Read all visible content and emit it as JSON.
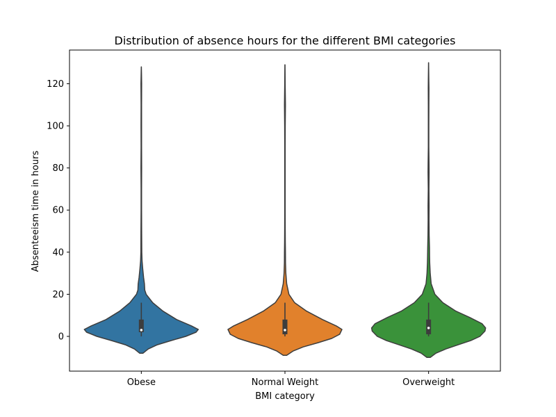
{
  "chart_data": {
    "type": "violin",
    "title": "Distribution of absence hours for the different BMI categories",
    "xlabel": "BMI category",
    "ylabel": "Absenteeism time in hours",
    "categories": [
      "Obese",
      "Normal Weight",
      "Overweight"
    ],
    "ylim": [
      -16.5,
      136
    ],
    "yticks": [
      0,
      20,
      40,
      60,
      80,
      100,
      120
    ],
    "grid": false,
    "colors": [
      "#3274a1",
      "#e1812c",
      "#3a923a"
    ],
    "series": [
      {
        "category": "Obese",
        "min": 0,
        "q1": 2,
        "median": 3,
        "q3": 8,
        "whisker_high": 16,
        "max": 120,
        "kde_extent": [
          -8,
          128
        ],
        "density": [
          [
            -8,
            0.03
          ],
          [
            -6,
            0.12
          ],
          [
            -4,
            0.28
          ],
          [
            -2,
            0.52
          ],
          [
            0,
            0.78
          ],
          [
            2,
            0.96
          ],
          [
            3.3,
            1.0
          ],
          [
            5,
            0.88
          ],
          [
            8,
            0.62
          ],
          [
            12,
            0.38
          ],
          [
            16,
            0.2
          ],
          [
            20,
            0.085
          ],
          [
            22,
            0.06
          ],
          [
            25,
            0.055
          ],
          [
            28,
            0.04
          ],
          [
            32,
            0.025
          ],
          [
            36,
            0.013
          ],
          [
            40,
            0.008
          ],
          [
            50,
            0.006
          ],
          [
            60,
            0.004
          ],
          [
            70,
            0.004
          ],
          [
            80,
            0.006
          ],
          [
            90,
            0.004
          ],
          [
            100,
            0.005
          ],
          [
            110,
            0.004
          ],
          [
            120,
            0.006
          ],
          [
            125,
            0.003
          ],
          [
            128,
            0.001
          ]
        ]
      },
      {
        "category": "Normal Weight",
        "min": 0,
        "q1": 1,
        "median": 3,
        "q3": 8,
        "whisker_high": 16,
        "max": 120,
        "kde_extent": [
          -9,
          129
        ],
        "density": [
          [
            -9,
            0.03
          ],
          [
            -7,
            0.14
          ],
          [
            -5,
            0.32
          ],
          [
            -3,
            0.58
          ],
          [
            -1,
            0.82
          ],
          [
            1,
            0.96
          ],
          [
            3.3,
            1.0
          ],
          [
            5,
            0.9
          ],
          [
            8,
            0.66
          ],
          [
            12,
            0.38
          ],
          [
            16,
            0.17
          ],
          [
            20,
            0.07
          ],
          [
            25,
            0.03
          ],
          [
            30,
            0.016
          ],
          [
            35,
            0.01
          ],
          [
            40,
            0.009
          ],
          [
            45,
            0.006
          ],
          [
            50,
            0.005
          ],
          [
            60,
            0.004
          ],
          [
            70,
            0.004
          ],
          [
            80,
            0.004
          ],
          [
            90,
            0.004
          ],
          [
            100,
            0.005
          ],
          [
            110,
            0.008
          ],
          [
            115,
            0.006
          ],
          [
            120,
            0.004
          ],
          [
            125,
            0.003
          ],
          [
            129,
            0.001
          ]
        ]
      },
      {
        "category": "Overweight",
        "min": 0,
        "q1": 1,
        "median": 4,
        "q3": 8,
        "whisker_high": 16,
        "max": 120,
        "kde_extent": [
          -10,
          130
        ],
        "density": [
          [
            -10,
            0.03
          ],
          [
            -8,
            0.13
          ],
          [
            -6,
            0.3
          ],
          [
            -4,
            0.52
          ],
          [
            -2,
            0.74
          ],
          [
            0,
            0.9
          ],
          [
            2.5,
            0.99
          ],
          [
            4,
            1.0
          ],
          [
            6,
            0.94
          ],
          [
            9,
            0.72
          ],
          [
            12,
            0.48
          ],
          [
            16,
            0.25
          ],
          [
            20,
            0.11
          ],
          [
            25,
            0.045
          ],
          [
            30,
            0.028
          ],
          [
            35,
            0.02
          ],
          [
            38,
            0.018
          ],
          [
            42,
            0.016
          ],
          [
            48,
            0.01
          ],
          [
            55,
            0.008
          ],
          [
            62,
            0.009
          ],
          [
            70,
            0.006
          ],
          [
            78,
            0.009
          ],
          [
            82,
            0.008
          ],
          [
            90,
            0.004
          ],
          [
            100,
            0.004
          ],
          [
            110,
            0.005
          ],
          [
            118,
            0.006
          ],
          [
            122,
            0.004
          ],
          [
            130,
            0.001
          ]
        ]
      }
    ]
  }
}
